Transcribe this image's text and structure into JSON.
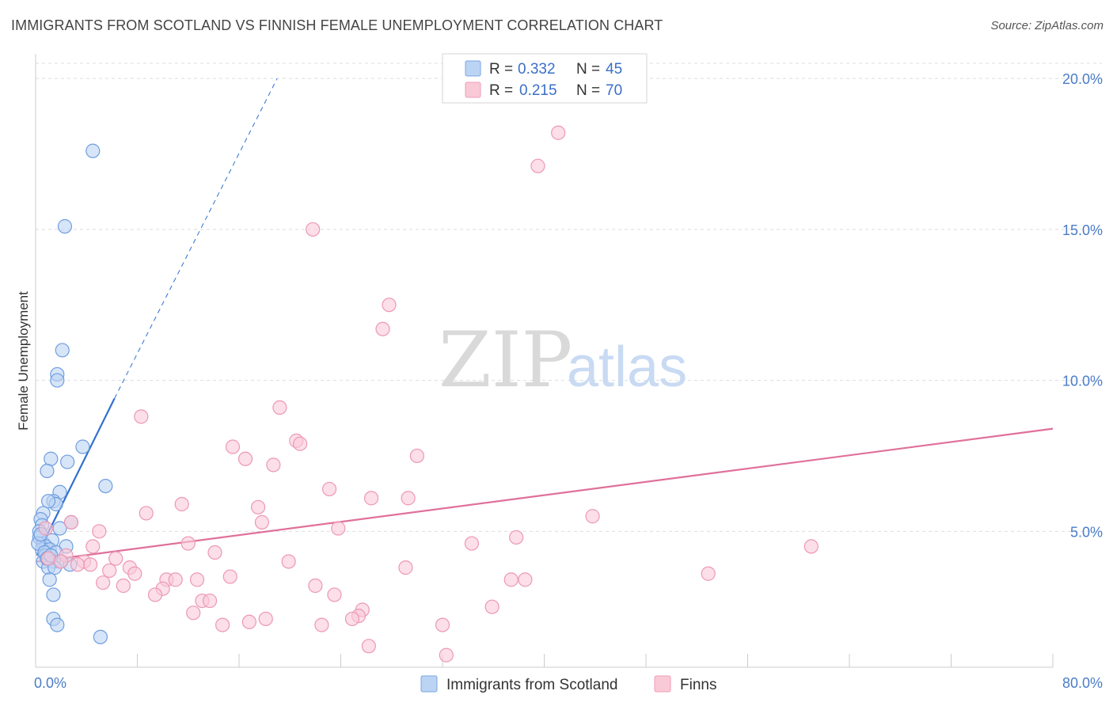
{
  "title": "IMMIGRANTS FROM SCOTLAND VS FINNISH FEMALE UNEMPLOYMENT CORRELATION CHART",
  "source": "Source: ZipAtlas.com",
  "watermark": {
    "zip": "ZIP",
    "atlas": "atlas"
  },
  "colors": {
    "blue": "#8ab4ea",
    "blue_stroke": "#5b8fd8",
    "blue_line": "#2f6fd0",
    "pink": "#f4a9c1",
    "pink_stroke": "#e58aab",
    "pink_line": "#e0709a",
    "grid": "#dddddd",
    "axis_text": "#4a7cc9"
  },
  "legend": {
    "rows": [
      {
        "r_label": "R = ",
        "r_value": "0.332",
        "n_label": "N = ",
        "n_value": "45"
      },
      {
        "r_label": "R = ",
        "r_value": "0.215",
        "n_label": "N = ",
        "n_value": "70"
      }
    ]
  },
  "chart_data": {
    "type": "scatter",
    "xlabel": "",
    "ylabel": "Female Unemployment",
    "xlim": [
      0,
      80
    ],
    "ylim": [
      0.5,
      20.5
    ],
    "x_tick_labels": [
      "0.0%",
      "80.0%"
    ],
    "y_ticks": [
      5,
      10,
      15,
      20
    ],
    "y_tick_labels": [
      "5.0%",
      "10.0%",
      "15.0%",
      "20.0%"
    ],
    "grid": true,
    "series": [
      {
        "name": "Immigrants from Scotland",
        "color": "blue",
        "trend": {
          "x0": 0.1,
          "y0": 4.2,
          "x1": 6.2,
          "y1": 9.4,
          "dash_x1": 19.0,
          "dash_y1": 20.0
        },
        "points": [
          [
            4.5,
            17.6
          ],
          [
            2.3,
            15.1
          ],
          [
            2.1,
            11.0
          ],
          [
            1.7,
            10.2
          ],
          [
            1.7,
            10.0
          ],
          [
            5.5,
            6.5
          ],
          [
            3.7,
            7.8
          ],
          [
            1.2,
            7.4
          ],
          [
            2.5,
            7.3
          ],
          [
            0.9,
            7.0
          ],
          [
            1.9,
            6.3
          ],
          [
            1.4,
            6.0
          ],
          [
            1.6,
            5.9
          ],
          [
            1.0,
            6.0
          ],
          [
            0.6,
            5.6
          ],
          [
            0.4,
            5.4
          ],
          [
            0.5,
            5.2
          ],
          [
            2.8,
            5.3
          ],
          [
            1.9,
            5.1
          ],
          [
            0.3,
            5.0
          ],
          [
            0.3,
            4.8
          ],
          [
            0.6,
            4.6
          ],
          [
            1.3,
            4.7
          ],
          [
            2.4,
            4.5
          ],
          [
            0.8,
            4.5
          ],
          [
            0.5,
            4.4
          ],
          [
            1.1,
            4.4
          ],
          [
            1.6,
            4.3
          ],
          [
            0.8,
            4.2
          ],
          [
            0.6,
            4.0
          ],
          [
            1.4,
            4.0
          ],
          [
            1.9,
            4.0
          ],
          [
            2.7,
            3.9
          ],
          [
            1.0,
            3.8
          ],
          [
            1.5,
            3.8
          ],
          [
            1.1,
            3.4
          ],
          [
            1.4,
            2.9
          ],
          [
            1.4,
            2.1
          ],
          [
            1.7,
            1.9
          ],
          [
            5.1,
            1.5
          ],
          [
            0.2,
            4.6
          ],
          [
            0.7,
            4.3
          ],
          [
            0.9,
            4.1
          ],
          [
            1.2,
            4.2
          ],
          [
            0.4,
            4.9
          ]
        ]
      },
      {
        "name": "Finns",
        "color": "pink",
        "trend": {
          "x0": 0.1,
          "y0": 4.0,
          "x1": 80.0,
          "y1": 8.4
        },
        "points": [
          [
            41.1,
            18.2
          ],
          [
            39.5,
            17.1
          ],
          [
            21.8,
            15.0
          ],
          [
            27.8,
            12.5
          ],
          [
            27.3,
            11.7
          ],
          [
            19.2,
            9.1
          ],
          [
            8.3,
            8.8
          ],
          [
            20.5,
            8.0
          ],
          [
            20.8,
            7.9
          ],
          [
            15.5,
            7.8
          ],
          [
            30.0,
            7.5
          ],
          [
            16.5,
            7.4
          ],
          [
            18.7,
            7.2
          ],
          [
            23.1,
            6.4
          ],
          [
            26.4,
            6.1
          ],
          [
            29.3,
            6.1
          ],
          [
            11.5,
            5.9
          ],
          [
            17.5,
            5.8
          ],
          [
            8.7,
            5.6
          ],
          [
            43.8,
            5.5
          ],
          [
            2.8,
            5.3
          ],
          [
            17.8,
            5.3
          ],
          [
            23.8,
            5.1
          ],
          [
            5.0,
            5.0
          ],
          [
            37.8,
            4.8
          ],
          [
            34.3,
            4.6
          ],
          [
            12.0,
            4.6
          ],
          [
            61.0,
            4.5
          ],
          [
            4.5,
            4.5
          ],
          [
            14.1,
            4.3
          ],
          [
            6.3,
            4.1
          ],
          [
            19.9,
            4.0
          ],
          [
            3.8,
            4.0
          ],
          [
            4.3,
            3.9
          ],
          [
            3.3,
            3.9
          ],
          [
            29.1,
            3.8
          ],
          [
            7.4,
            3.8
          ],
          [
            5.8,
            3.7
          ],
          [
            7.8,
            3.6
          ],
          [
            15.3,
            3.5
          ],
          [
            52.9,
            3.6
          ],
          [
            10.3,
            3.4
          ],
          [
            11.0,
            3.4
          ],
          [
            12.7,
            3.4
          ],
          [
            37.4,
            3.4
          ],
          [
            38.5,
            3.4
          ],
          [
            5.3,
            3.3
          ],
          [
            6.9,
            3.2
          ],
          [
            22.0,
            3.2
          ],
          [
            10.0,
            3.1
          ],
          [
            9.4,
            2.9
          ],
          [
            23.5,
            2.9
          ],
          [
            13.1,
            2.7
          ],
          [
            13.7,
            2.7
          ],
          [
            35.9,
            2.5
          ],
          [
            25.7,
            2.4
          ],
          [
            12.4,
            2.3
          ],
          [
            25.4,
            2.2
          ],
          [
            24.9,
            2.1
          ],
          [
            18.1,
            2.1
          ],
          [
            16.8,
            2.0
          ],
          [
            14.7,
            1.9
          ],
          [
            22.5,
            1.9
          ],
          [
            32.0,
            1.9
          ],
          [
            26.2,
            1.2
          ],
          [
            32.3,
            0.9
          ],
          [
            2.4,
            4.2
          ],
          [
            1.0,
            4.1
          ],
          [
            0.8,
            5.1
          ],
          [
            2.0,
            4.0
          ]
        ]
      }
    ]
  }
}
